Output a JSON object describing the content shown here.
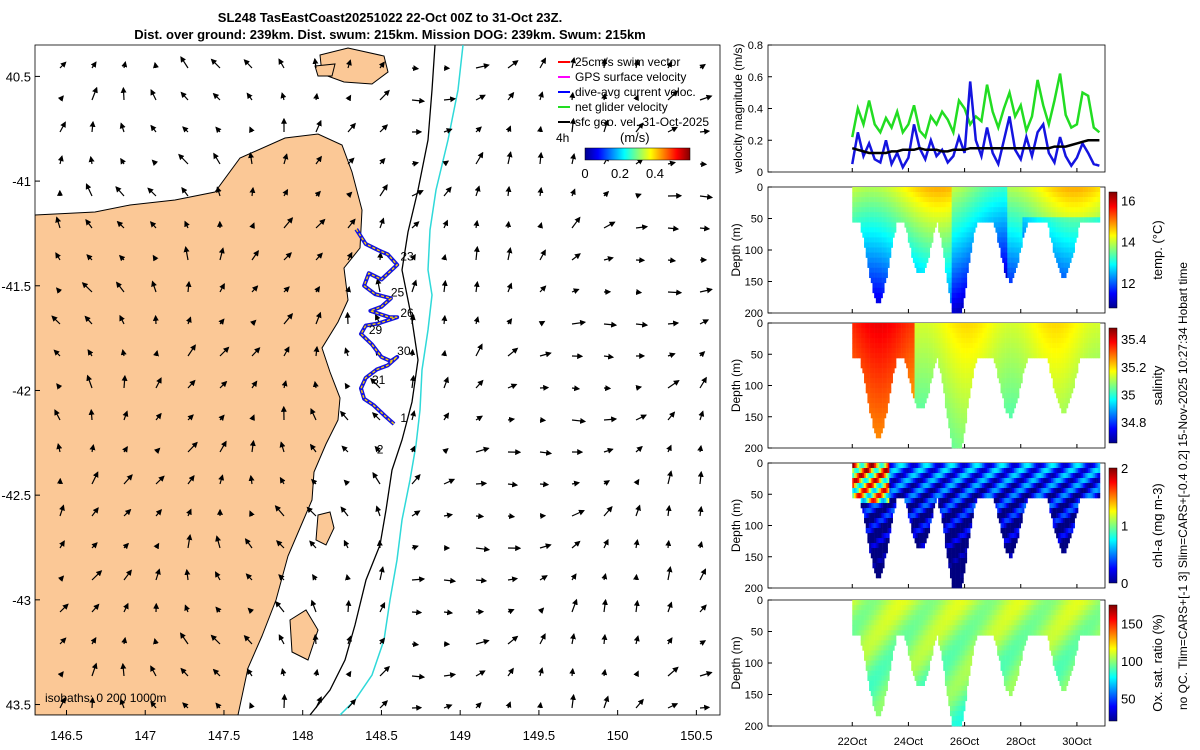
{
  "title": {
    "line1": "SL248 TasEastCoast20251022 22-Oct 00Z to 31-Oct 23Z.",
    "line2": "Dist. over ground: 239km. Dist. swum: 215km. Mission DOG: 239km. Swum: 215km"
  },
  "side_note": "no QC. Tlim=CARS+[-1 3] Slim=CARS+[-0.4 0.2] 15-Nov-2025 10:27:34 Hobart time",
  "colors": {
    "land": "#fbc896",
    "coast": "#000000",
    "isobath_200": "#000000",
    "isobath_1000": "#2fd9d9",
    "track": "#1414e0",
    "net": "#22dd22",
    "swim": "#ff0000",
    "gps": "#ff00ff",
    "geo": "#000000"
  },
  "chart_data": [
    {
      "type": "scatter",
      "name": "map",
      "xlim": [
        146.3,
        150.65
      ],
      "ylim": [
        -43.55,
        -40.35
      ],
      "xticks": [
        146.5,
        147,
        147.5,
        148,
        148.5,
        149,
        149.5,
        150,
        150.5
      ],
      "xtick_labels": [
        "146.5",
        "147",
        "147.5",
        "148",
        "148.5",
        "149",
        "149.5",
        "150",
        "150.5"
      ],
      "yticks": [
        -40.5,
        -41,
        -41.5,
        -42,
        -42.5,
        -43,
        -43.5
      ],
      "ytick_labels": [
        "40.5",
        "-41",
        "-41.5",
        "-42",
        "-42.5",
        "-43",
        "43.5"
      ],
      "legend": [
        {
          "label": "25cm/s swim vector",
          "color": "#ff0000"
        },
        {
          "label": "GPS surface velocity",
          "color": "#ff00ff"
        },
        {
          "label": "dive-avg current veloc.",
          "color": "#0000ff"
        },
        {
          "label": "net glider velocity",
          "color": "#22dd22"
        },
        {
          "label": "sfc geo. vel. 31-Oct-2025",
          "color": "#000000"
        }
      ],
      "colorbar": {
        "title": "(m/s)",
        "prefix": "4h",
        "ticks": [
          "0",
          "0.2",
          "0.4"
        ],
        "range": [
          0,
          0.6
        ]
      },
      "isobaths_label": "isobaths: 0   200   1000m",
      "track": [
        [
          148.34,
          -41.23
        ],
        [
          148.4,
          -41.3
        ],
        [
          148.48,
          -41.33
        ],
        [
          148.54,
          -41.35
        ],
        [
          148.6,
          -41.4
        ],
        [
          148.5,
          -41.47
        ],
        [
          148.42,
          -41.44
        ],
        [
          148.39,
          -41.5
        ],
        [
          148.46,
          -41.54
        ],
        [
          148.56,
          -41.56
        ],
        [
          148.5,
          -41.6
        ],
        [
          148.43,
          -41.62
        ],
        [
          148.55,
          -41.65
        ],
        [
          148.6,
          -41.65
        ],
        [
          148.48,
          -41.68
        ],
        [
          148.4,
          -41.69
        ],
        [
          148.37,
          -41.73
        ],
        [
          148.44,
          -41.78
        ],
        [
          148.5,
          -41.84
        ],
        [
          148.56,
          -41.86
        ],
        [
          148.6,
          -41.84
        ],
        [
          148.54,
          -41.88
        ],
        [
          148.47,
          -41.9
        ],
        [
          148.4,
          -41.94
        ],
        [
          148.37,
          -41.99
        ],
        [
          148.39,
          -42.04
        ],
        [
          148.45,
          -42.07
        ],
        [
          148.52,
          -42.12
        ],
        [
          148.58,
          -42.16
        ]
      ],
      "track_labels": [
        {
          "text": "23",
          "lon": 148.62,
          "lat": -41.38
        },
        {
          "text": "25",
          "lon": 148.56,
          "lat": -41.55
        },
        {
          "text": "26",
          "lon": 148.62,
          "lat": -41.65
        },
        {
          "text": "29",
          "lon": 148.42,
          "lat": -41.73
        },
        {
          "text": "30",
          "lon": 148.6,
          "lat": -41.83
        },
        {
          "text": "31",
          "lon": 148.44,
          "lat": -41.97
        },
        {
          "text": "1",
          "lon": 148.62,
          "lat": -42.15
        },
        {
          "text": "2",
          "lon": 148.47,
          "lat": -42.3
        }
      ]
    },
    {
      "type": "line",
      "name": "velocity",
      "ylabel": "velocity magnitude (m/s)",
      "ylim": [
        0,
        0.8
      ],
      "yticks": [
        "0",
        "0.2",
        "0.4",
        "0.6",
        "0.8"
      ],
      "xlim": [
        0,
        12
      ],
      "x": [
        3.0,
        3.2,
        3.4,
        3.6,
        3.8,
        4.0,
        4.2,
        4.4,
        4.6,
        4.8,
        5.0,
        5.2,
        5.4,
        5.6,
        5.8,
        6.0,
        6.2,
        6.4,
        6.6,
        6.8,
        7.0,
        7.2,
        7.4,
        7.6,
        7.8,
        8.0,
        8.2,
        8.4,
        8.6,
        8.8,
        9.0,
        9.2,
        9.4,
        9.6,
        9.8,
        10.0,
        10.2,
        10.4,
        10.6,
        10.8,
        11.0,
        11.2,
        11.4,
        11.6,
        11.8
      ],
      "series": [
        {
          "name": "net glider velocity",
          "color": "#22dd22",
          "values": [
            0.22,
            0.4,
            0.3,
            0.45,
            0.3,
            0.25,
            0.34,
            0.28,
            0.38,
            0.25,
            0.3,
            0.42,
            0.26,
            0.22,
            0.35,
            0.3,
            0.38,
            0.33,
            0.25,
            0.45,
            0.4,
            0.3,
            0.35,
            0.32,
            0.55,
            0.38,
            0.28,
            0.4,
            0.5,
            0.35,
            0.42,
            0.26,
            0.35,
            0.58,
            0.42,
            0.3,
            0.45,
            0.62,
            0.36,
            0.28,
            0.3,
            0.5,
            0.48,
            0.28,
            0.25
          ]
        },
        {
          "name": "dive-avg current veloc.",
          "color": "#1414e0",
          "values": [
            0.05,
            0.25,
            0.1,
            0.18,
            0.08,
            0.06,
            0.2,
            0.05,
            0.12,
            0.03,
            0.09,
            0.3,
            0.15,
            0.08,
            0.2,
            0.1,
            0.14,
            0.06,
            0.1,
            0.22,
            0.12,
            0.57,
            0.2,
            0.1,
            0.28,
            0.12,
            0.05,
            0.2,
            0.35,
            0.14,
            0.08,
            0.22,
            0.1,
            0.25,
            0.3,
            0.12,
            0.06,
            0.22,
            0.1,
            0.04,
            0.09,
            0.18,
            0.12,
            0.05,
            0.04
          ]
        },
        {
          "name": "sfc geo. vel.",
          "color": "#000000",
          "values": [
            0.15,
            0.14,
            0.13,
            0.12,
            0.12,
            0.12,
            0.12,
            0.13,
            0.13,
            0.14,
            0.14,
            0.14,
            0.15,
            0.14,
            0.14,
            0.14,
            0.13,
            0.13,
            0.14,
            0.14,
            0.14,
            0.15,
            0.15,
            0.15,
            0.15,
            0.15,
            0.15,
            0.15,
            0.15,
            0.15,
            0.15,
            0.15,
            0.15,
            0.15,
            0.15,
            0.15,
            0.16,
            0.16,
            0.16,
            0.17,
            0.18,
            0.19,
            0.2,
            0.2,
            0.2
          ]
        }
      ]
    },
    {
      "type": "heatmap",
      "name": "temperature",
      "ylabel": "Depth (m)",
      "ylim": [
        200,
        0
      ],
      "yticks": [
        "0",
        "50",
        "100",
        "150",
        "200"
      ],
      "colorbar_label": "temp. (°C)",
      "colorbar_ticks": [
        "12",
        "14",
        "16"
      ],
      "crange": [
        10.8,
        16.4
      ]
    },
    {
      "type": "heatmap",
      "name": "salinity",
      "ylabel": "Depth (m)",
      "ylim": [
        200,
        0
      ],
      "yticks": [
        "0",
        "50",
        "100",
        "150",
        "200"
      ],
      "colorbar_label": "salinity",
      "colorbar_ticks": [
        "34.8",
        "35",
        "35.2",
        "35.4"
      ],
      "crange": [
        34.65,
        35.48
      ]
    },
    {
      "type": "heatmap",
      "name": "chlorophyll",
      "ylabel": "Depth (m)",
      "ylim": [
        200,
        0
      ],
      "yticks": [
        "0",
        "50",
        "100",
        "150",
        "200"
      ],
      "colorbar_label": "chl-a (mg m-3)",
      "colorbar_ticks": [
        "0",
        "1",
        "2"
      ],
      "crange": [
        0,
        2
      ]
    },
    {
      "type": "heatmap",
      "name": "oxygen",
      "ylabel": "Depth (m)",
      "ylim": [
        200,
        0
      ],
      "yticks": [
        "0",
        "50",
        "100",
        "150",
        "200"
      ],
      "colorbar_label": "Ox. sat. ratio (%)",
      "colorbar_ticks": [
        "50",
        "100",
        "150"
      ],
      "crange": [
        20,
        175
      ],
      "xtick_labels": [
        "22Oct",
        "24Oct",
        "26Oct",
        "28Oct",
        "30Oct"
      ],
      "xticks": [
        3,
        5,
        7,
        9,
        11
      ]
    }
  ]
}
